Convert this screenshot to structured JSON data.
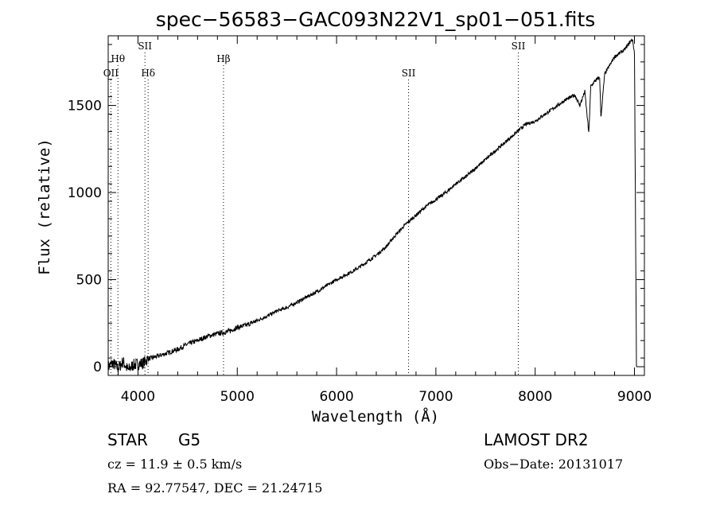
{
  "chart_data": {
    "type": "line",
    "title": "spec−56583−GAC093N22V1_sp01−051.fits",
    "xlabel": "Wavelength (Å)",
    "ylabel": "Flux (relative)",
    "xlim": [
      3700,
      9100
    ],
    "ylim": [
      -50,
      1900
    ],
    "grid": false,
    "xticks": [
      4000,
      5000,
      6000,
      7000,
      8000,
      9000
    ],
    "yticks": [
      0,
      500,
      1000,
      1500
    ],
    "series": [
      {
        "x": [
          3700,
          3750,
          3800,
          3850,
          3900,
          3950,
          4000,
          4050,
          4100,
          4200,
          4300,
          4400,
          4500,
          4600,
          4700,
          4800,
          4900,
          5000,
          5100,
          5200,
          5300,
          5400,
          5500,
          5600,
          5700,
          5800,
          5900,
          6000,
          6100,
          6200,
          6300,
          6400,
          6500,
          6600,
          6700,
          6800,
          6900,
          7000,
          7100,
          7200,
          7300,
          7400,
          7500,
          7600,
          7700,
          7800,
          7900,
          8000,
          8100,
          8200,
          8300,
          8400,
          8450,
          8500,
          8540,
          8560,
          8600,
          8650,
          8662,
          8700,
          8750,
          8800,
          8850,
          8900,
          8950,
          8980,
          9000,
          9020
        ],
        "y": [
          0,
          20,
          -10,
          30,
          -20,
          10,
          15,
          20,
          45,
          60,
          80,
          100,
          130,
          150,
          175,
          190,
          200,
          225,
          240,
          265,
          290,
          320,
          340,
          370,
          400,
          430,
          465,
          500,
          530,
          560,
          600,
          640,
          690,
          760,
          820,
          870,
          920,
          960,
          1000,
          1050,
          1090,
          1140,
          1190,
          1240,
          1290,
          1340,
          1390,
          1410,
          1450,
          1490,
          1530,
          1560,
          1500,
          1580,
          1340,
          1610,
          1640,
          1660,
          1430,
          1680,
          1730,
          1780,
          1800,
          1820,
          1860,
          1880,
          1800,
          0
        ]
      }
    ],
    "line_markers": [
      {
        "label": "OII",
        "x": 3727,
        "row": 3
      },
      {
        "label": "Hθ",
        "x": 3798,
        "row": 2
      },
      {
        "label": "SII",
        "x": 4070,
        "row": 1
      },
      {
        "label": "Hδ",
        "x": 4102,
        "row": 3
      },
      {
        "label": "Hβ",
        "x": 4861,
        "row": 2
      },
      {
        "label": "SII",
        "x": 6725,
        "row": 3
      },
      {
        "label": "SII",
        "x": 7830,
        "row": 1
      }
    ]
  },
  "info": {
    "class": "STAR",
    "subclass": "G5",
    "survey": "LAMOST DR2",
    "cz": "cz = 11.9 ± 0.5 km/s",
    "obs_date": "Obs−Date: 20131017",
    "coords": "RA =  92.77547, DEC =  21.24715"
  }
}
